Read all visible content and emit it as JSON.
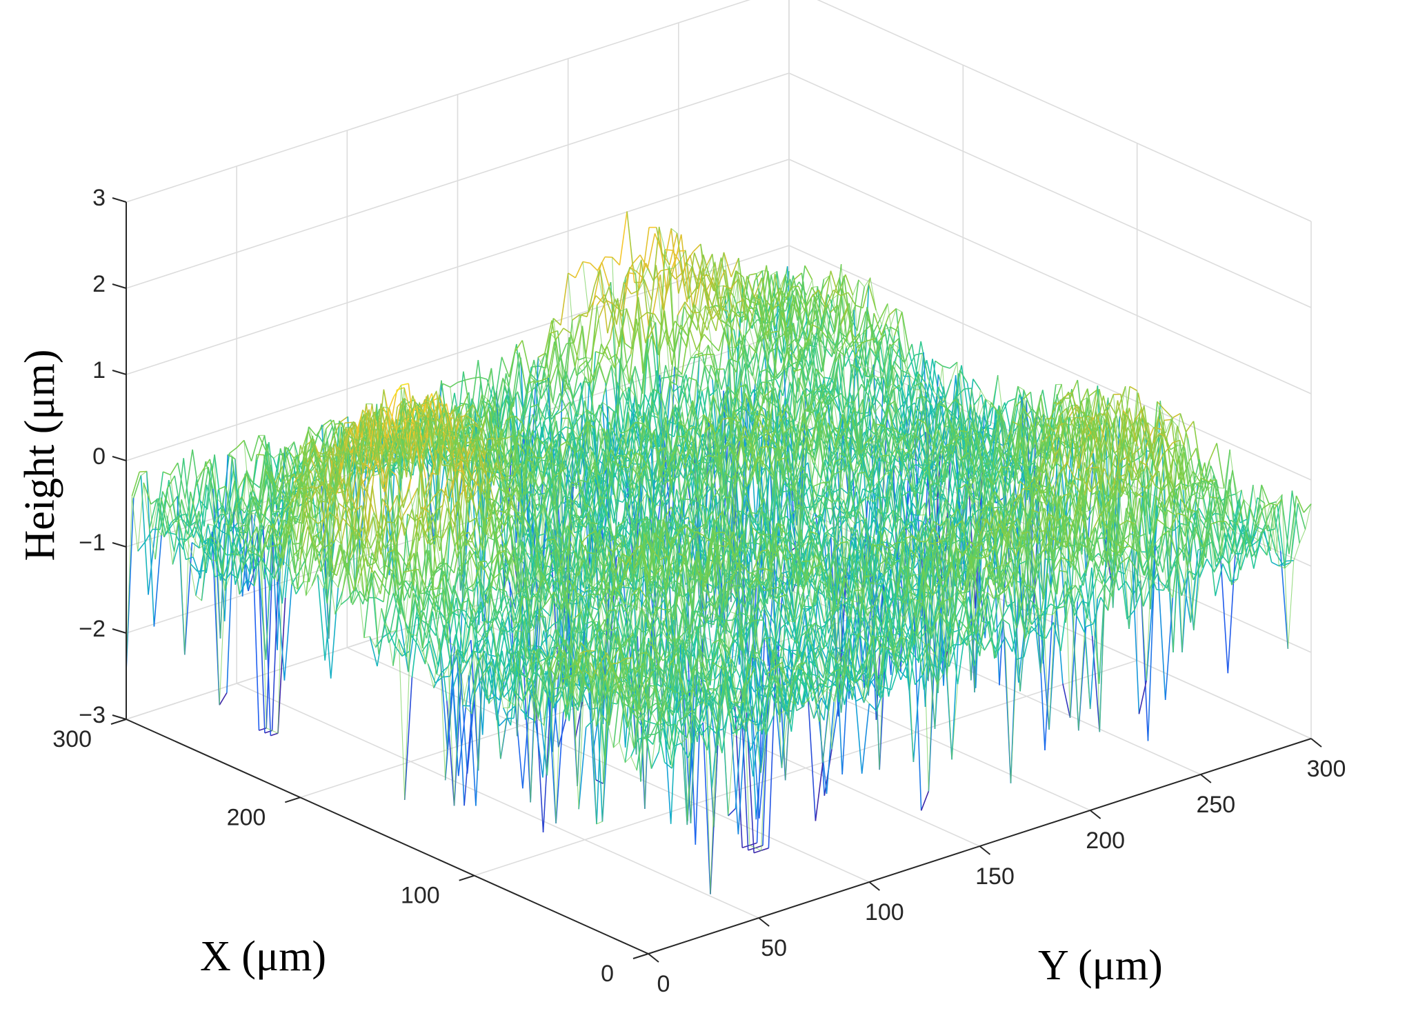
{
  "chart_data": {
    "type": "surface",
    "title": "",
    "xlabel": "X (μm)",
    "ylabel": "Y (μm)",
    "zlabel": "Height (μm)",
    "xlim": [
      0,
      300
    ],
    "ylim": [
      0,
      300
    ],
    "zlim": [
      -3,
      3
    ],
    "x_ticks": [
      0,
      100,
      200,
      300
    ],
    "y_ticks": [
      0,
      50,
      100,
      150,
      200,
      250,
      300
    ],
    "z_ticks": [
      -3,
      -2,
      -1,
      0,
      1,
      2,
      3
    ],
    "x_tick_labels": [
      "0",
      "100",
      "200",
      "300"
    ],
    "y_tick_labels": [
      "0",
      "50",
      "100",
      "150",
      "200",
      "250",
      "300"
    ],
    "z_tick_labels": [
      "−3",
      "−2",
      "−1",
      "0",
      "1",
      "2",
      "3"
    ],
    "grid": true,
    "colormap": "parula",
    "colormap_stops": [
      "#3e26a8",
      "#1f5ff0",
      "#12a4d6",
      "#1fc7a0",
      "#7fcf45",
      "#d6bf2e",
      "#f7c72c",
      "#f9fb15"
    ],
    "surface_summary": {
      "mean_height": -0.6,
      "min_height": -2.9,
      "max_height": 1.2,
      "peaks": [
        {
          "x": 215,
          "y": 60,
          "height": 1.0
        },
        {
          "x": 60,
          "y": 270,
          "height": 0.2
        },
        {
          "x": 300,
          "y": 230,
          "height": 0.8
        }
      ],
      "deep_pits": [
        {
          "x": 250,
          "y": 25,
          "height": -2.9
        },
        {
          "x": 40,
          "y": 80,
          "height": -2.8
        }
      ]
    }
  }
}
